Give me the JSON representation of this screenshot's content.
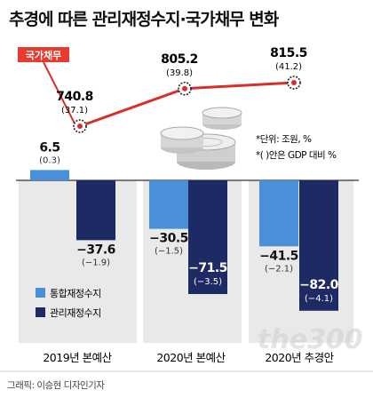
{
  "title": "추경에 따른 관리재정수지·국가채무 변화",
  "notes": [
    "*단위: 조원, %",
    "*( )안은 GDP 대비 %"
  ],
  "credit": "그래픽: 이승현 디자인기자",
  "watermark": "the300",
  "colors": {
    "line": "#d7302c",
    "bar_integrated": "#4a90d9",
    "bar_managed": "#1d2a63",
    "debt_badge_bg": "#e63b2e",
    "panel_bg": "#e9e9e9"
  },
  "icons": [
    "coin-stack-icon"
  ],
  "chart_data": [
    {
      "type": "line",
      "name": "국가채무",
      "badge": "국가채무",
      "categories": [
        "2019년 본예산",
        "2020년 본예산",
        "2020년 추경안"
      ],
      "values": [
        740.8,
        805.2,
        815.5
      ],
      "value_labels": [
        "740.8",
        "805.2",
        "815.5"
      ],
      "gdp_labels": [
        "(37.1)",
        "(39.8)",
        "(41.2)"
      ]
    },
    {
      "type": "bar",
      "categories": [
        "2019년 본예산",
        "2020년 본예산",
        "2020년 추경안"
      ],
      "legend_position": "bottom-left",
      "series": [
        {
          "name": "통합재정수지",
          "values": [
            6.5,
            -30.5,
            -41.5
          ],
          "value_labels": [
            "6.5",
            "−30.5",
            "−41.5"
          ],
          "gdp_labels": [
            "(0.3)",
            "(−1.5)",
            "(−2.1)"
          ]
        },
        {
          "name": "관리재정수지",
          "values": [
            -37.6,
            -71.5,
            -82.0
          ],
          "value_labels": [
            "−37.6",
            "−71.5",
            "−82.0"
          ],
          "gdp_labels": [
            "(−1.9)",
            "(−3.5)",
            "(−4.1)"
          ]
        }
      ]
    }
  ]
}
